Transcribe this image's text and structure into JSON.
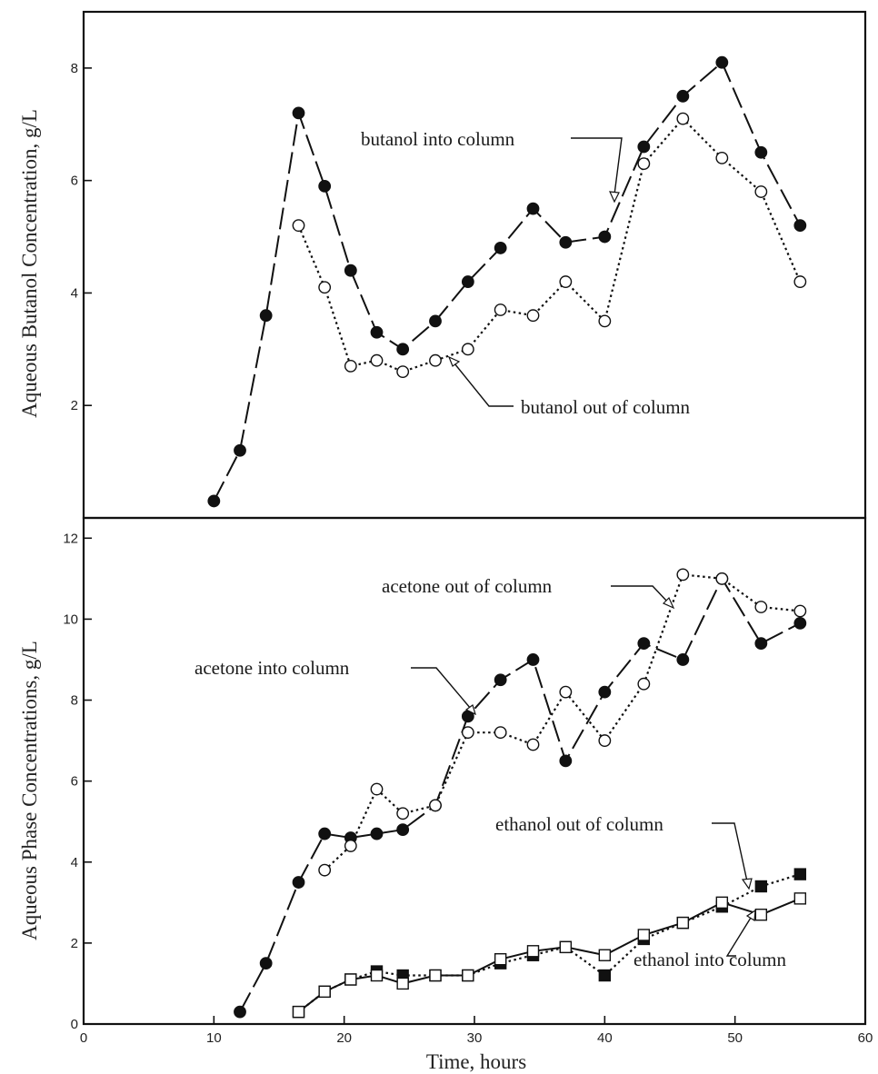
{
  "chart_data": [
    {
      "type": "line",
      "ylabel": "Aqueous Butanol Concentration,  g/L",
      "xlim": [
        0,
        60
      ],
      "ylim": [
        0,
        9
      ],
      "yticks": [
        2,
        4,
        6,
        8
      ],
      "series": [
        {
          "name": "butanol into column",
          "marker": "filled-circle",
          "line": "long-dash",
          "x": [
            10,
            12,
            14,
            16.5,
            18.5,
            20.5,
            22.5,
            24.5,
            27,
            29.5,
            32,
            34.5,
            37,
            40,
            43,
            46,
            49,
            52,
            55
          ],
          "y": [
            0.3,
            1.2,
            3.6,
            7.2,
            5.9,
            4.4,
            3.3,
            3.0,
            3.5,
            4.2,
            4.8,
            5.5,
            4.9,
            5.0,
            6.6,
            7.5,
            8.1,
            6.5,
            5.2
          ]
        },
        {
          "name": "butanol out of column",
          "marker": "open-circle",
          "line": "dotted",
          "x": [
            16.5,
            18.5,
            20.5,
            22.5,
            24.5,
            27,
            29.5,
            32,
            34.5,
            37,
            40,
            43,
            46,
            49,
            52,
            55
          ],
          "y": [
            5.2,
            4.1,
            2.7,
            2.8,
            2.6,
            2.8,
            3.0,
            3.7,
            3.6,
            4.2,
            3.5,
            6.3,
            7.1,
            6.4,
            5.8,
            4.2
          ]
        }
      ],
      "annotations": [
        {
          "text": "butanol into column"
        },
        {
          "text": "butanol out of column"
        }
      ]
    },
    {
      "type": "line",
      "xlabel": "Time,  hours",
      "ylabel": "Aqueous Phase Concentrations,  g/L",
      "xlim": [
        0,
        60
      ],
      "ylim": [
        0,
        12.5
      ],
      "xticks": [
        0,
        10,
        20,
        30,
        40,
        50,
        60
      ],
      "yticks": [
        0,
        2,
        4,
        6,
        8,
        10,
        12
      ],
      "series": [
        {
          "name": "acetone into column",
          "marker": "filled-circle",
          "line": "long-dash",
          "x": [
            12,
            14,
            16.5,
            18.5,
            20.5,
            22.5,
            24.5,
            27,
            29.5,
            32,
            34.5,
            37,
            40,
            43,
            46,
            49,
            52,
            55
          ],
          "y": [
            0.3,
            1.5,
            3.5,
            4.7,
            4.6,
            4.7,
            4.8,
            5.4,
            7.6,
            8.5,
            9.0,
            6.5,
            8.2,
            9.4,
            9.0,
            11.0,
            9.4,
            9.9
          ]
        },
        {
          "name": "acetone out of column",
          "marker": "open-circle",
          "line": "dotted",
          "x": [
            18.5,
            20.5,
            22.5,
            24.5,
            27,
            29.5,
            32,
            34.5,
            37,
            40,
            43,
            46,
            49,
            52,
            55
          ],
          "y": [
            3.8,
            4.4,
            5.8,
            5.2,
            5.4,
            7.2,
            7.2,
            6.9,
            8.2,
            7.0,
            8.4,
            11.1,
            11.0,
            10.3,
            10.2
          ]
        },
        {
          "name": "ethanol out of column",
          "marker": "filled-square",
          "line": "dotted",
          "x": [
            16.5,
            18.5,
            20.5,
            22.5,
            24.5,
            27,
            29.5,
            32,
            34.5,
            37,
            40,
            43,
            46,
            49,
            52,
            55
          ],
          "y": [
            0.3,
            0.8,
            1.1,
            1.3,
            1.2,
            1.2,
            1.2,
            1.5,
            1.7,
            1.9,
            1.2,
            2.1,
            2.5,
            2.9,
            3.4,
            3.7
          ]
        },
        {
          "name": "ethanol into column",
          "marker": "open-square",
          "line": "solid",
          "x": [
            16.5,
            18.5,
            20.5,
            22.5,
            24.5,
            27,
            29.5,
            32,
            34.5,
            37,
            40,
            43,
            46,
            49,
            52,
            55
          ],
          "y": [
            0.3,
            0.8,
            1.1,
            1.2,
            1.0,
            1.2,
            1.2,
            1.6,
            1.8,
            1.9,
            1.7,
            2.2,
            2.5,
            3.0,
            2.7,
            3.1
          ]
        }
      ],
      "annotations": [
        {
          "text": "acetone out of column"
        },
        {
          "text": "acetone into column"
        },
        {
          "text": "ethanol out of column"
        },
        {
          "text": "ethanol into column"
        }
      ]
    }
  ]
}
